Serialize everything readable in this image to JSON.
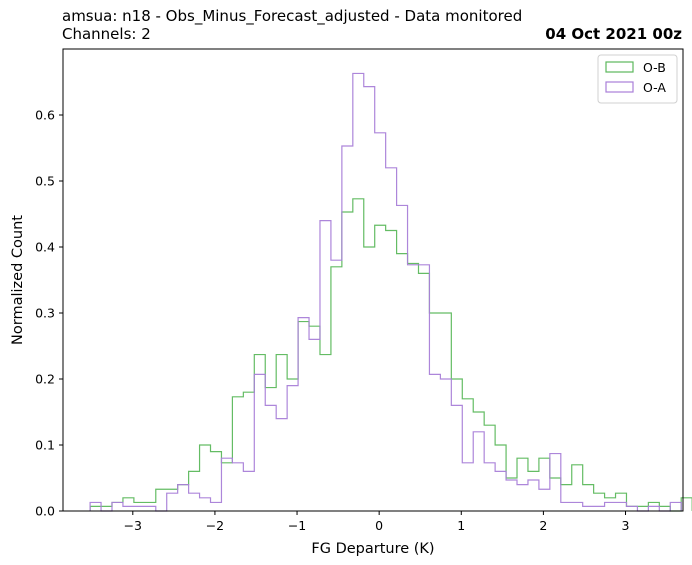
{
  "chart_data": {
    "type": "step-histogram",
    "title_line1": "amsua: n18 - Obs_Minus_Forecast_adjusted - Data monitored",
    "title_line2": "Channels: 2",
    "date_label": "04 Oct 2021 00z",
    "xlabel": "FG Departure (K)",
    "ylabel": "Normalized Count",
    "xlim": [
      -3.85,
      3.7
    ],
    "ylim": [
      0,
      0.7
    ],
    "xticks": [
      -3,
      -2,
      -1,
      0,
      1,
      2,
      3
    ],
    "xtick_labels": [
      "−3",
      "−2",
      "−1",
      "0",
      "1",
      "2",
      "3"
    ],
    "yticks": [
      0.0,
      0.1,
      0.2,
      0.3,
      0.4,
      0.5,
      0.6
    ],
    "ytick_labels": [
      "0.0",
      "0.1",
      "0.2",
      "0.3",
      "0.4",
      "0.5",
      "0.6"
    ],
    "legend": {
      "position": "top-right"
    },
    "series": [
      {
        "name": "O-B",
        "color": "#5cb85c",
        "x_start": -3.52,
        "bin_width": 0.1333,
        "values": [
          0.007,
          0.007,
          0.013,
          0.02,
          0.013,
          0.013,
          0.033,
          0.033,
          0.04,
          0.06,
          0.1,
          0.09,
          0.073,
          0.173,
          0.18,
          0.237,
          0.187,
          0.237,
          0.2,
          0.287,
          0.28,
          0.237,
          0.37,
          0.453,
          0.473,
          0.4,
          0.433,
          0.425,
          0.39,
          0.375,
          0.36,
          0.3,
          0.3,
          0.2,
          0.17,
          0.15,
          0.13,
          0.1,
          0.05,
          0.08,
          0.06,
          0.08,
          0.05,
          0.04,
          0.07,
          0.04,
          0.027,
          0.02,
          0.027,
          0.007,
          0.007,
          0.013,
          0.007,
          0.0,
          0.02
        ]
      },
      {
        "name": "O-A",
        "color": "#a97fd8",
        "x_start": -3.52,
        "bin_width": 0.1333,
        "values": [
          0.013,
          0.0,
          0.013,
          0.007,
          0.007,
          0.007,
          0.0,
          0.027,
          0.04,
          0.027,
          0.02,
          0.013,
          0.08,
          0.073,
          0.06,
          0.207,
          0.16,
          0.14,
          0.19,
          0.293,
          0.26,
          0.44,
          0.38,
          0.553,
          0.663,
          0.643,
          0.573,
          0.52,
          0.463,
          0.373,
          0.373,
          0.207,
          0.2,
          0.16,
          0.073,
          0.12,
          0.073,
          0.06,
          0.047,
          0.04,
          0.047,
          0.033,
          0.087,
          0.013,
          0.013,
          0.007,
          0.007,
          0.013,
          0.013,
          0.007,
          0.0,
          0.007,
          0.0,
          0.013
        ]
      }
    ]
  }
}
